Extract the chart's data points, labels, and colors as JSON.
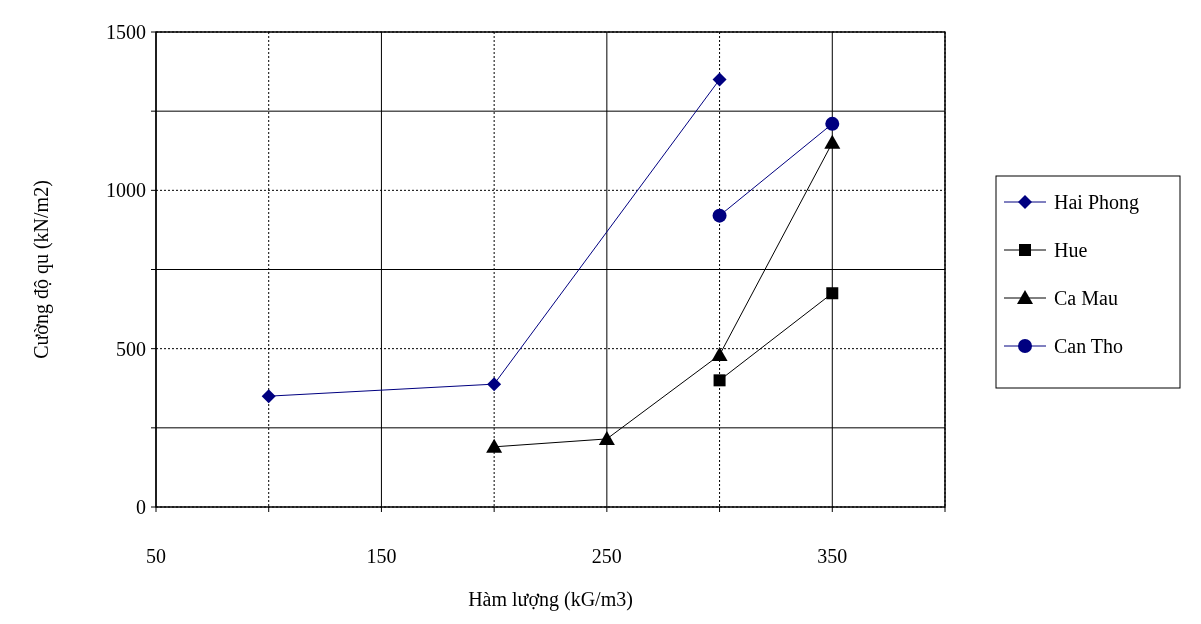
{
  "chart_data": {
    "type": "line",
    "xlabel": "Hàm lượng (kG/m3)",
    "ylabel": "Cường độ qu (kN/m2)",
    "xlim": [
      50,
      400
    ],
    "xticks": [
      50,
      {
        "value": 100,
        "label": null
      },
      150,
      {
        "value": 200,
        "label": null
      },
      250,
      {
        "value": 300,
        "label": null
      },
      350,
      {
        "value": 400,
        "label": null
      }
    ],
    "ylim": [
      0,
      1500
    ],
    "yticks": [
      0,
      {
        "value": 250,
        "label": null
      },
      500,
      {
        "value": 750,
        "label": null
      },
      1000,
      {
        "value": 1250,
        "label": null
      },
      1500
    ],
    "grid": true,
    "legend": "right",
    "series": [
      {
        "name": "Hai Phong",
        "color": "#000080",
        "marker": "diamond",
        "x": [
          100,
          200,
          300
        ],
        "values": [
          350,
          388,
          1350
        ]
      },
      {
        "name": "Hue",
        "color": "#000000",
        "marker": "square",
        "x": [
          300,
          350
        ],
        "values": [
          400,
          675
        ]
      },
      {
        "name": "Ca Mau",
        "color": "#000000",
        "marker": "triangle",
        "x": [
          200,
          250,
          300,
          350
        ],
        "values": [
          190,
          215,
          480,
          1150
        ]
      },
      {
        "name": "Can Tho",
        "color": "#000080",
        "marker": "circle",
        "x": [
          300,
          350
        ],
        "values": [
          920,
          1210
        ]
      }
    ]
  }
}
